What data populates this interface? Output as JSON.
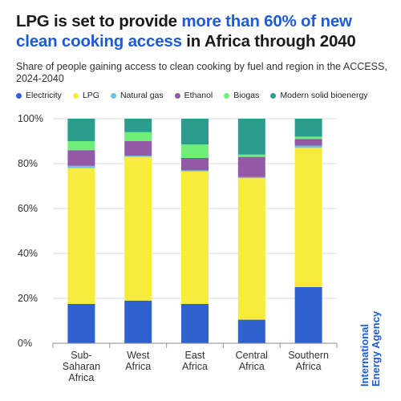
{
  "title": {
    "part1": "LPG is set to provide ",
    "highlight": "more than 60% of new clean cooking access",
    "part2": " in Africa through 2040"
  },
  "subtitle": "Share of people gaining access to clean cooking by fuel and region in the ACCESS, 2024-2040",
  "brand": {
    "line1": "International",
    "line2": "Energy Agency"
  },
  "chart_data": {
    "type": "bar",
    "stacked": true,
    "categories": [
      [
        "Sub-",
        "Saharan",
        "Africa"
      ],
      [
        "West",
        "Africa"
      ],
      [
        "East",
        "Africa"
      ],
      [
        "Central",
        "Africa"
      ],
      [
        "Southern",
        "Africa"
      ]
    ],
    "ylim": [
      0,
      100
    ],
    "yticks": [
      "0%",
      "20%",
      "40%",
      "60%",
      "80%",
      "100%"
    ],
    "legend_position": "top",
    "series": [
      {
        "name": "Electricity",
        "color": "#2f62d0",
        "values": [
          17.5,
          19,
          17.5,
          10.5,
          25
        ]
      },
      {
        "name": "LPG",
        "color": "#f7ec3c",
        "values": [
          60.5,
          64,
          59,
          63,
          62
        ]
      },
      {
        "name": "Natural gas",
        "color": "#6cc3df",
        "values": [
          1,
          0.5,
          0.5,
          0.5,
          1
        ]
      },
      {
        "name": "Ethanol",
        "color": "#9159a8",
        "values": [
          7,
          6.5,
          5.5,
          9,
          3
        ]
      },
      {
        "name": "Biogas",
        "color": "#6fef7a",
        "values": [
          4,
          4,
          6,
          1,
          1
        ]
      },
      {
        "name": "Modern solid bioenergy",
        "color": "#2a9d8f",
        "values": [
          10,
          6,
          11.5,
          16,
          8
        ]
      }
    ]
  }
}
